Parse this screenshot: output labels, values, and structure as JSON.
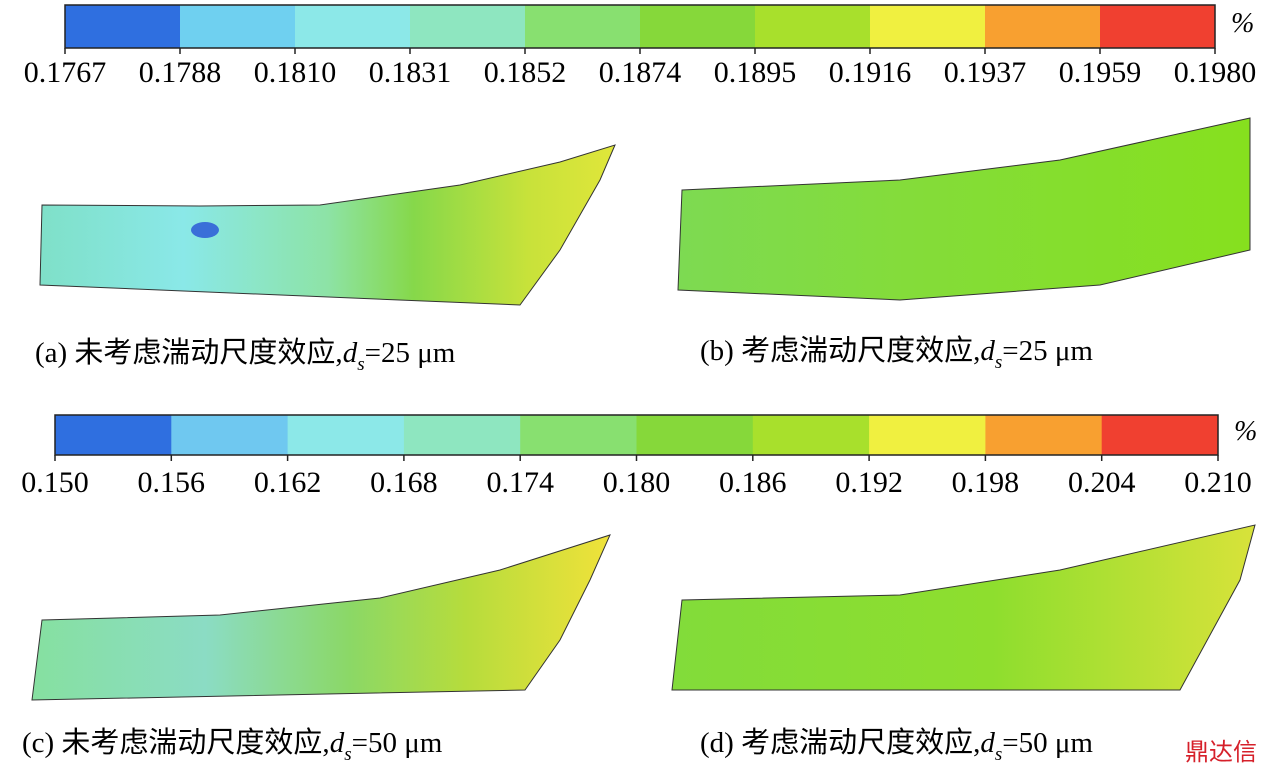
{
  "colorbars": [
    {
      "unit": "%",
      "ticks": [
        "0.1767",
        "0.1788",
        "0.1810",
        "0.1831",
        "0.1852",
        "0.1874",
        "0.1895",
        "0.1916",
        "0.1937",
        "0.1959",
        "0.1980"
      ]
    },
    {
      "unit": "%",
      "ticks": [
        "0.150",
        "0.156",
        "0.162",
        "0.168",
        "0.174",
        "0.180",
        "0.186",
        "0.192",
        "0.198",
        "0.204",
        "0.210"
      ]
    }
  ],
  "panels": [
    {
      "label": "(a) 未考虑湍动尺度效应,",
      "symbol": "d",
      "subscript": "s",
      "value": "=25 μm"
    },
    {
      "label": "(b) 考虑湍动尺度效应,",
      "symbol": "d",
      "subscript": "s",
      "value": "=25 μm"
    },
    {
      "label": "(c) 未考虑湍动尺度效应,",
      "symbol": "d",
      "subscript": "s",
      "value": "=50 μm"
    },
    {
      "label": "(d) 考虑湍动尺度效应,",
      "symbol": "d",
      "subscript": "s",
      "value": "=50 μm"
    }
  ],
  "watermark": "鼎达信"
}
